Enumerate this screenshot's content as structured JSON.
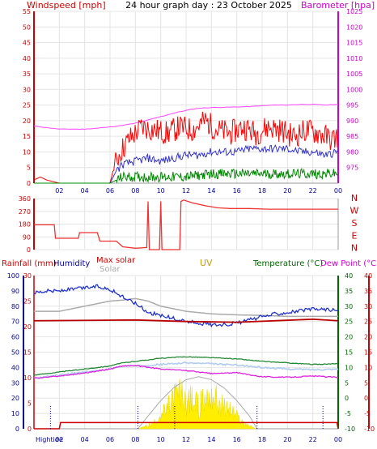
{
  "header": {
    "title": "24 hour graph day : 23 October 2025",
    "windspeed_label": "Windspeed [mph]",
    "barometer_label": "Barometer [hpa]"
  },
  "lower_labels": {
    "rainfall": "Rainfall (mm)",
    "humidity": "Humidity",
    "max_solar": "Max solar",
    "solar": "Solar",
    "uv": "UV",
    "temperature": "Temperature (°C)",
    "dew_point": "Dew Point (°C)",
    "hightide": "Hightide"
  },
  "colors": {
    "frame_red": "#cc0000",
    "magenta": "#cc00cc",
    "navy": "#000099",
    "green": "#006600",
    "uv_orange": "#cc9900",
    "wind_red": "#ff0000",
    "gust_blue": "#3333cc",
    "gust_green": "#008800",
    "barometer_pink": "#ff44ff",
    "direction_red": "#ee3333",
    "humidity_blue": "#2233cc",
    "temperature_green": "#228833",
    "dewpoint_magenta": "#dd22dd",
    "apparent_lightblue": "#b0ccee",
    "solar_yellow": "#ffee00",
    "maxsolar_gray": "#aaaaaa",
    "rain_red": "#cc0000"
  },
  "chart_data": [
    {
      "type": "line",
      "title": "24 hour graph day : 23 October 2025",
      "ylabel": "Windspeed [mph]",
      "ylabel_right": "Barometer [hpa]",
      "ylim": [
        0,
        55
      ],
      "ylim_right": [
        970,
        1025
      ],
      "y_ticks": [
        "0",
        "5",
        "10",
        "15",
        "20",
        "25",
        "30",
        "35",
        "40",
        "45",
        "50",
        "55"
      ],
      "y_ticks_right": [
        "975",
        "980",
        "985",
        "990",
        "995",
        "1000",
        "1005",
        "1010",
        "1015",
        "1020",
        "1025"
      ],
      "x_ticks": [
        "02",
        "04",
        "06",
        "08",
        "10",
        "12",
        "14",
        "16",
        "18",
        "20",
        "22",
        "00"
      ],
      "grid": true,
      "series": [
        {
          "name": "wind_gust",
          "color": "#ff0000",
          "x": [
            0,
            0.5,
            1,
            2,
            3,
            4,
            5,
            6,
            6.3,
            6.8,
            7.5,
            8.5,
            9.5,
            10.5,
            11.5,
            12.5,
            13.5,
            14.5,
            15.5,
            16.5,
            17.5,
            18.5,
            19.5,
            20.5,
            21.5,
            22.5,
            23.5,
            24
          ],
          "values": [
            1,
            2,
            1,
            0,
            0,
            0,
            0,
            0,
            5,
            10,
            14,
            18,
            17,
            16,
            18,
            17,
            20,
            17,
            16,
            18,
            16,
            18,
            17,
            15,
            17,
            16,
            14,
            15
          ]
        },
        {
          "name": "wind_avg",
          "color": "#3333cc",
          "x": [
            0,
            6,
            6.5,
            7,
            8,
            9,
            10,
            11,
            12,
            13,
            14,
            15,
            16,
            17,
            18,
            19,
            20,
            21,
            22,
            23,
            24
          ],
          "values": [
            0,
            0,
            4,
            6,
            7,
            8,
            7,
            8,
            9,
            9,
            10,
            10,
            10,
            11,
            11,
            11,
            11,
            10,
            10,
            9,
            10
          ]
        },
        {
          "name": "wind_min",
          "color": "#008800",
          "x": [
            0,
            6,
            6.5,
            7,
            8,
            10,
            12,
            14,
            16,
            18,
            20,
            22,
            24
          ],
          "values": [
            0,
            0,
            1,
            2,
            2,
            2,
            2,
            3,
            3,
            3,
            3,
            3,
            3
          ]
        },
        {
          "name": "barometer",
          "color": "#ff44ff",
          "x": [
            0,
            1,
            2,
            3,
            4,
            5,
            6,
            7,
            8,
            9,
            10,
            11,
            12,
            13,
            14,
            15,
            16,
            17,
            18,
            19,
            20,
            21,
            22,
            23,
            24
          ],
          "values": [
            988.3,
            987.8,
            987.3,
            987.3,
            987.3,
            987.6,
            988,
            988.5,
            989.2,
            990.2,
            991.3,
            992.4,
            993.3,
            994,
            994.2,
            994.3,
            994.4,
            994.5,
            994.8,
            995,
            995,
            995.2,
            995.2,
            995,
            995.2
          ]
        }
      ]
    },
    {
      "type": "line",
      "ylabel_right": "N W S E N",
      "right_labels": [
        "N",
        "W",
        "S",
        "E",
        "N"
      ],
      "ylim": [
        0,
        360
      ],
      "y_ticks": [
        "0",
        "90",
        "180",
        "270",
        "360"
      ],
      "series": [
        {
          "name": "wind_direction",
          "color": "#ee3333",
          "x": [
            0,
            1.6,
            1.7,
            3.5,
            3.6,
            5,
            5.2,
            6.5,
            7,
            8,
            8.9,
            9.0,
            9.1,
            9.9,
            10.0,
            10.1,
            11.5,
            11.6,
            11.8,
            12.5,
            13.5,
            14.5,
            15.5,
            17,
            18.5,
            20,
            22,
            24
          ],
          "values": [
            175,
            175,
            80,
            80,
            120,
            120,
            60,
            60,
            20,
            10,
            15,
            340,
            0,
            0,
            340,
            0,
            0,
            340,
            350,
            330,
            310,
            295,
            290,
            290,
            285,
            285,
            285,
            285
          ]
        }
      ]
    },
    {
      "type": "line",
      "ylabel": "Rainfall (mm)",
      "ylim": [
        0,
        30
      ],
      "y_ticks": [
        "0",
        "5",
        "10",
        "15",
        "20",
        "25",
        "30"
      ],
      "y_ticks_humidity": [
        "0",
        "10",
        "20",
        "30",
        "40",
        "50",
        "60",
        "70",
        "80",
        "90",
        "100"
      ],
      "y_ticks_right": [
        "-10",
        "-5",
        "0",
        "5",
        "10",
        "15",
        "20",
        "25",
        "30",
        "35",
        "40"
      ],
      "x_ticks": [
        "Hightide",
        "02",
        "04",
        "06",
        "08",
        "10",
        "12",
        "14",
        "16",
        "18",
        "20",
        "22",
        "00"
      ],
      "series": [
        {
          "name": "humidity",
          "color": "#2233cc",
          "x": [
            0,
            1,
            2,
            3,
            4,
            5,
            6,
            7,
            8,
            9,
            10,
            11,
            12,
            13,
            14,
            15,
            16,
            17,
            18,
            19,
            20,
            21,
            22,
            23,
            24
          ],
          "values": [
            89,
            90,
            90,
            91,
            92,
            93,
            91,
            86,
            82,
            76,
            74,
            72,
            70,
            69,
            68,
            68,
            69,
            71,
            73,
            75,
            76,
            77,
            78,
            78,
            77
          ]
        },
        {
          "name": "dew_point",
          "color": "#dd22dd",
          "x": [
            0,
            2,
            4,
            6,
            7,
            8,
            10,
            12,
            14,
            16,
            18,
            20,
            22,
            24
          ],
          "values": [
            6.5,
            7.2,
            8.2,
            9.5,
            10.5,
            10.6,
            9.5,
            9.0,
            8.0,
            8.3,
            7.0,
            6.8,
            7.2,
            6.8
          ]
        },
        {
          "name": "temperature",
          "color": "#228833",
          "x": [
            0,
            2,
            4,
            6,
            7,
            8,
            10,
            12,
            14,
            16,
            18,
            20,
            22,
            24
          ],
          "values": [
            7.5,
            8.5,
            9.5,
            10.5,
            11.5,
            12,
            13,
            13.5,
            13.2,
            12.8,
            12,
            11.5,
            11,
            11.2
          ]
        },
        {
          "name": "apparent_temperature",
          "color": "#b0ccee",
          "x": [
            0,
            2,
            4,
            6,
            7,
            8,
            10,
            12,
            14,
            16,
            18,
            20,
            22,
            24
          ],
          "values": [
            6.5,
            7.5,
            8.5,
            9.5,
            10.5,
            10.5,
            11,
            11.5,
            11.2,
            10.8,
            10,
            9.5,
            9.3,
            9.5
          ]
        },
        {
          "name": "max_solar",
          "color": "#aaaaaa",
          "x": [
            0,
            2,
            4,
            6,
            7,
            8,
            9,
            10,
            12,
            14,
            16,
            18,
            20,
            22,
            24
          ],
          "values": [
            23,
            23,
            24,
            25,
            25.2,
            25.5,
            25,
            24,
            23,
            22.5,
            22.3,
            22.2,
            22,
            22,
            22
          ]
        },
        {
          "name": "max_solar_curve",
          "color": "#aaaaaa",
          "x": [
            8.2,
            9,
            10,
            11,
            12,
            13,
            14,
            15,
            16,
            17,
            17.6
          ],
          "values": [
            0,
            2.5,
            5.5,
            8,
            9.6,
            10.2,
            9.6,
            8,
            5.5,
            2.5,
            0
          ]
        },
        {
          "name": "solar",
          "color": "#ffee00",
          "x": [
            8.2,
            9,
            9.5,
            10,
            10.5,
            11,
            11.5,
            12,
            12.5,
            13,
            13.5,
            14,
            14.5,
            15,
            15.5,
            16,
            16.5,
            17,
            17.5
          ],
          "values": [
            0,
            0.8,
            1.5,
            3.5,
            4.5,
            7.5,
            8.5,
            6.5,
            7,
            5.5,
            7,
            8.5,
            6.5,
            5,
            4.5,
            3,
            1.5,
            0.8,
            0
          ]
        },
        {
          "name": "rainfall",
          "color": "#cc0000",
          "x": [
            0,
            2,
            2.1,
            4,
            6,
            8,
            10,
            12,
            14,
            16,
            18,
            20,
            22,
            23.9,
            24
          ],
          "values": [
            0,
            0,
            1.2,
            1.2,
            1.2,
            1.2,
            1.2,
            1.2,
            1.2,
            1.2,
            1.2,
            1.2,
            1.2,
            1.2,
            0
          ]
        }
      ]
    }
  ]
}
